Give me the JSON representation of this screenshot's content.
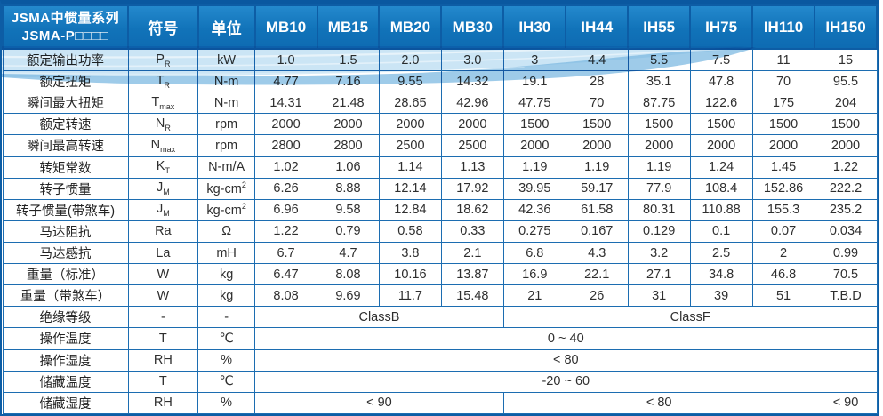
{
  "colors": {
    "header_bg": "#1173b9",
    "header_text": "#ffffff",
    "grid_border": "#1c6db1",
    "outer_border": "#0d5da5",
    "value_text": "#2f2f2f",
    "wave_light": "#c5e2f4",
    "wave_mid": "#7db9e2"
  },
  "table": {
    "title_line1": "JSMA中惯量系列",
    "title_line2": "JSMA-P□□□□",
    "col_symbol": "符号",
    "col_unit": "单位",
    "models": [
      "MB10",
      "MB15",
      "MB20",
      "MB30",
      "IH30",
      "IH44",
      "IH55",
      "IH75",
      "IH110",
      "IH150"
    ],
    "rows": [
      {
        "label": "额定输出功率",
        "symbol": "P",
        "sub": "R",
        "unit": "kW",
        "values": [
          "1.0",
          "1.5",
          "2.0",
          "3.0",
          "3",
          "4.4",
          "5.5",
          "7.5",
          "11",
          "15"
        ]
      },
      {
        "label": "额定扭矩",
        "symbol": "T",
        "sub": "R",
        "unit": "N-m",
        "values": [
          "4.77",
          "7.16",
          "9.55",
          "14.32",
          "19.1",
          "28",
          "35.1",
          "47.8",
          "70",
          "95.5"
        ]
      },
      {
        "label": "瞬间最大扭矩",
        "symbol": "T",
        "sub": "max",
        "unit": "N-m",
        "values": [
          "14.31",
          "21.48",
          "28.65",
          "42.96",
          "47.75",
          "70",
          "87.75",
          "122.6",
          "175",
          "204"
        ]
      },
      {
        "label": "额定转速",
        "symbol": "N",
        "sub": "R",
        "unit": "rpm",
        "values": [
          "2000",
          "2000",
          "2000",
          "2000",
          "1500",
          "1500",
          "1500",
          "1500",
          "1500",
          "1500"
        ]
      },
      {
        "label": "瞬间最高转速",
        "symbol": "N",
        "sub": "max",
        "unit": "rpm",
        "values": [
          "2800",
          "2800",
          "2500",
          "2500",
          "2000",
          "2000",
          "2000",
          "2000",
          "2000",
          "2000"
        ]
      },
      {
        "label": "转矩常数",
        "symbol": "K",
        "sub": "T",
        "unit": "N-m/A",
        "values": [
          "1.02",
          "1.06",
          "1.14",
          "1.13",
          "1.19",
          "1.19",
          "1.19",
          "1.24",
          "1.45",
          "1.22"
        ]
      },
      {
        "label": "转子惯量",
        "symbol": "J",
        "sub": "M",
        "unit": "kg-cm",
        "unit_sup": "2",
        "values": [
          "6.26",
          "8.88",
          "12.14",
          "17.92",
          "39.95",
          "59.17",
          "77.9",
          "108.4",
          "152.86",
          "222.2"
        ]
      },
      {
        "label": "转子惯量(带煞车)",
        "symbol": "J",
        "sub": "M",
        "unit": "kg-cm",
        "unit_sup": "2",
        "values": [
          "6.96",
          "9.58",
          "12.84",
          "18.62",
          "42.36",
          "61.58",
          "80.31",
          "110.88",
          "155.3",
          "235.2"
        ]
      },
      {
        "label": "马达阻抗",
        "symbol": "Ra",
        "unit": "Ω",
        "values": [
          "1.22",
          "0.79",
          "0.58",
          "0.33",
          "0.275",
          "0.167",
          "0.129",
          "0.1",
          "0.07",
          "0.034"
        ]
      },
      {
        "label": "马达感抗",
        "symbol": "La",
        "unit": "mH",
        "values": [
          "6.7",
          "4.7",
          "3.8",
          "2.1",
          "6.8",
          "4.3",
          "3.2",
          "2.5",
          "2",
          "0.99"
        ]
      },
      {
        "label": "重量（标准）",
        "symbol": "W",
        "unit": "kg",
        "values": [
          "6.47",
          "8.08",
          "10.16",
          "13.87",
          "16.9",
          "22.1",
          "27.1",
          "34.8",
          "46.8",
          "70.5"
        ]
      },
      {
        "label": "重量（带煞车）",
        "symbol": "W",
        "unit": "kg",
        "values": [
          "8.08",
          "9.69",
          "11.7",
          "15.48",
          "21",
          "26",
          "31",
          "39",
          "51",
          "T.B.D"
        ]
      },
      {
        "label": "绝缘等级",
        "symbol": "-",
        "unit": "-",
        "spans": [
          {
            "text": "ClassB",
            "cols": 4
          },
          {
            "text": "ClassF",
            "cols": 6
          }
        ]
      },
      {
        "label": "操作温度",
        "symbol": "T",
        "unit": "℃",
        "spans": [
          {
            "text": "0 ~ 40",
            "cols": 10
          }
        ]
      },
      {
        "label": "操作湿度",
        "symbol": "RH",
        "unit": "%",
        "spans": [
          {
            "text": "< 80",
            "cols": 10
          }
        ]
      },
      {
        "label": "储藏温度",
        "symbol": "T",
        "unit": "℃",
        "spans": [
          {
            "text": "-20 ~ 60",
            "cols": 10
          }
        ]
      },
      {
        "label": "储藏湿度",
        "symbol": "RH",
        "unit": "%",
        "spans": [
          {
            "text": "< 90",
            "cols": 4
          },
          {
            "text": "< 80",
            "cols": 5
          },
          {
            "text": "< 90",
            "cols": 1
          }
        ]
      }
    ]
  }
}
